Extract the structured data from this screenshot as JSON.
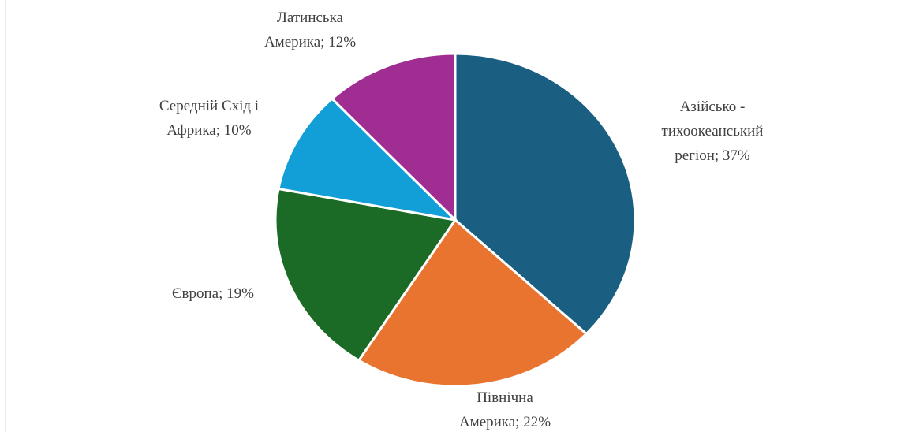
{
  "chart_data": {
    "type": "pie",
    "values": [
      37,
      22,
      19,
      10,
      12
    ],
    "value_labels": [
      "Азійсько -\nтихоокеанський\nрегіон; 37%",
      "Північна\nАмерика; 22%",
      "Європа; 19%",
      "Середній Схід і\nАфрика; 10%",
      "Латинська\nАмерика; 12%"
    ],
    "colors": [
      "#1a5f82",
      "#e87430",
      "#1b6b27",
      "#129fd8",
      "#a02d92"
    ]
  }
}
